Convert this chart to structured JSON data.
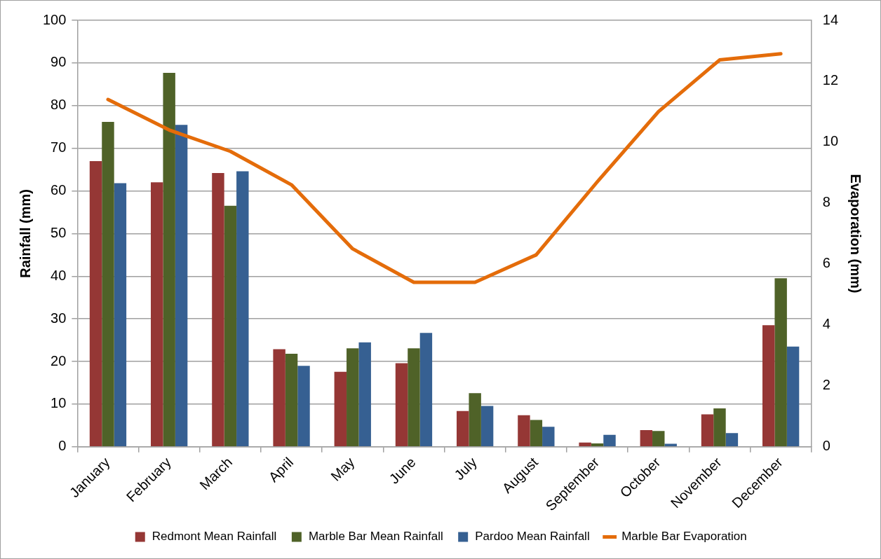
{
  "chart_data": {
    "type": "bar",
    "ylabel": "Rainfall (mm)",
    "y2label": "Evaporation (mm)",
    "categories": [
      "January",
      "February",
      "March",
      "April",
      "May",
      "June",
      "July",
      "August",
      "September",
      "October",
      "November",
      "December"
    ],
    "series": [
      {
        "name": "Redmont Mean Rainfall",
        "color": "#953735",
        "values": [
          67.0,
          62.0,
          64.2,
          22.9,
          17.6,
          19.6,
          8.4,
          7.4,
          1.0,
          3.9,
          7.6,
          28.5
        ]
      },
      {
        "name": "Marble Bar Mean Rainfall",
        "color": "#4f6228",
        "values": [
          76.2,
          87.7,
          56.5,
          21.8,
          23.1,
          23.1,
          12.6,
          6.3,
          0.8,
          3.7,
          9.0,
          39.5
        ]
      },
      {
        "name": "Pardoo Mean Rainfall",
        "color": "#366092",
        "values": [
          61.8,
          75.5,
          64.6,
          19.0,
          24.5,
          26.7,
          9.6,
          4.7,
          2.8,
          0.7,
          3.2,
          23.5
        ]
      },
      {
        "name": "Marble Bar Evaporation",
        "type": "line",
        "axis": "y2",
        "color": "#e46c0a",
        "values": [
          11.4,
          10.4,
          9.7,
          8.6,
          6.5,
          5.4,
          5.4,
          6.3,
          8.7,
          11.0,
          12.7,
          12.9
        ]
      }
    ],
    "ylim": [
      0,
      100
    ],
    "yticks": [
      0,
      10,
      20,
      30,
      40,
      50,
      60,
      70,
      80,
      90,
      100
    ],
    "y2lim": [
      0,
      14
    ],
    "y2ticks": [
      0,
      2,
      4,
      6,
      8,
      10,
      12,
      14
    ],
    "grid": "y",
    "legend": "bottom",
    "marker": "none",
    "line_style": "solid"
  }
}
